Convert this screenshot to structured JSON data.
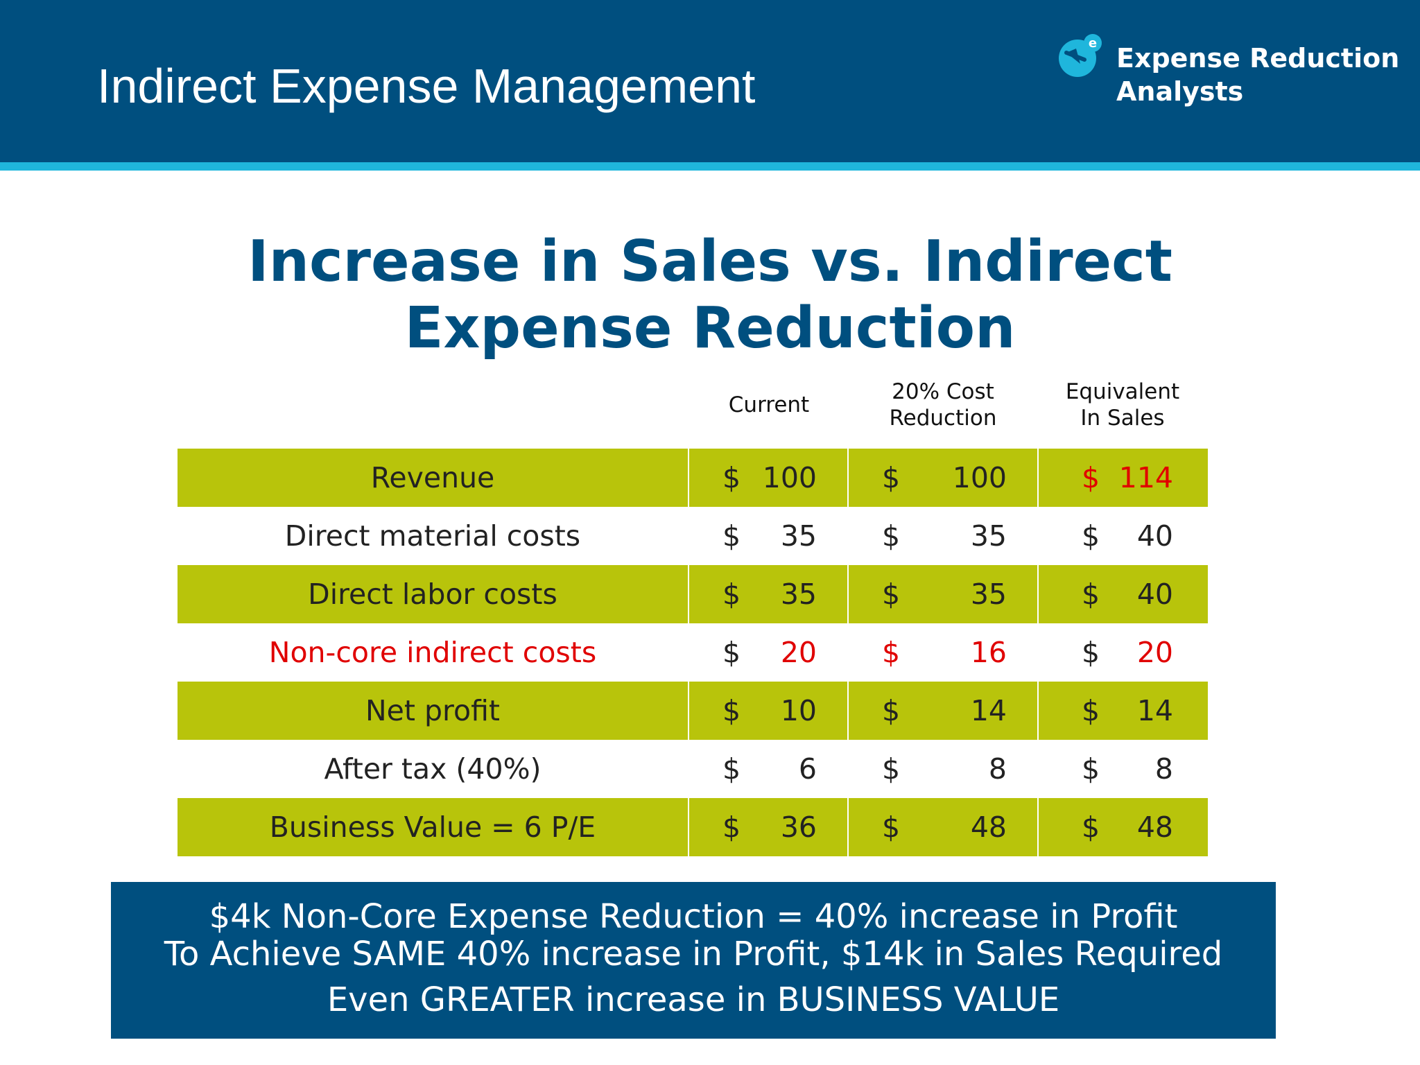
{
  "header": {
    "title": "Indirect Expense Management",
    "logo_line1": "Expense Reduction",
    "logo_line2": "Analysts",
    "colors": {
      "bar": "#004f7f",
      "stripe": "#1fb6dc"
    }
  },
  "title": {
    "line1": "Increase in Sales vs. Indirect",
    "line2": "Expense Reduction"
  },
  "columns": [
    "Current",
    "20% Cost\nReduction",
    "Equivalent\nIn Sales"
  ],
  "rows": [
    {
      "label": "Revenue",
      "shaded": true,
      "label_red": false,
      "cells": [
        {
          "cur": "$",
          "val": "100",
          "red": false
        },
        {
          "cur": "$",
          "val": "100",
          "red": false
        },
        {
          "cur": "$",
          "val": "114",
          "red": true
        }
      ]
    },
    {
      "label": "Direct material costs",
      "shaded": false,
      "label_red": false,
      "cells": [
        {
          "cur": "$",
          "val": "35",
          "red": false
        },
        {
          "cur": "$",
          "val": "35",
          "red": false
        },
        {
          "cur": "$",
          "val": "40",
          "red": false
        }
      ]
    },
    {
      "label": "Direct labor costs",
      "shaded": true,
      "label_red": false,
      "cells": [
        {
          "cur": "$",
          "val": "35",
          "red": false
        },
        {
          "cur": "$",
          "val": "35",
          "red": false
        },
        {
          "cur": "$",
          "val": "40",
          "red": false
        }
      ]
    },
    {
      "label": "Non-core indirect costs",
      "shaded": false,
      "label_red": true,
      "cells": [
        {
          "cur": "$",
          "val": "20",
          "red": true,
          "cur_red": false
        },
        {
          "cur": "$",
          "val": "16",
          "red": true,
          "cur_red": true
        },
        {
          "cur": "$",
          "val": "20",
          "red": true,
          "cur_red": false
        }
      ]
    },
    {
      "label": "Net profit",
      "shaded": true,
      "label_red": false,
      "cells": [
        {
          "cur": "$",
          "val": "10",
          "red": false
        },
        {
          "cur": "$",
          "val": "14",
          "red": false
        },
        {
          "cur": "$",
          "val": "14",
          "red": false
        }
      ]
    },
    {
      "label": "After tax (40%)",
      "shaded": false,
      "label_red": false,
      "cells": [
        {
          "cur": "$",
          "val": "6",
          "red": false
        },
        {
          "cur": "$",
          "val": "8",
          "red": false
        },
        {
          "cur": "$",
          "val": "8",
          "red": false
        }
      ]
    },
    {
      "label": "Business Value = 6 P/E",
      "shaded": true,
      "label_red": false,
      "cells": [
        {
          "cur": "$",
          "val": "36",
          "red": false
        },
        {
          "cur": "$",
          "val": "48",
          "red": false
        },
        {
          "cur": "$",
          "val": "48",
          "red": false
        }
      ]
    }
  ],
  "banner": {
    "line1": "$4k Non-Core Expense Reduction = 40% increase in Profit",
    "line2": "To Achieve SAME 40% increase in Profit, $14k in Sales Required",
    "line3": "Even GREATER increase in BUSINESS VALUE"
  },
  "colors": {
    "shade": "#b8c40b",
    "highlight": "#e00000",
    "navy": "#004f7f"
  }
}
